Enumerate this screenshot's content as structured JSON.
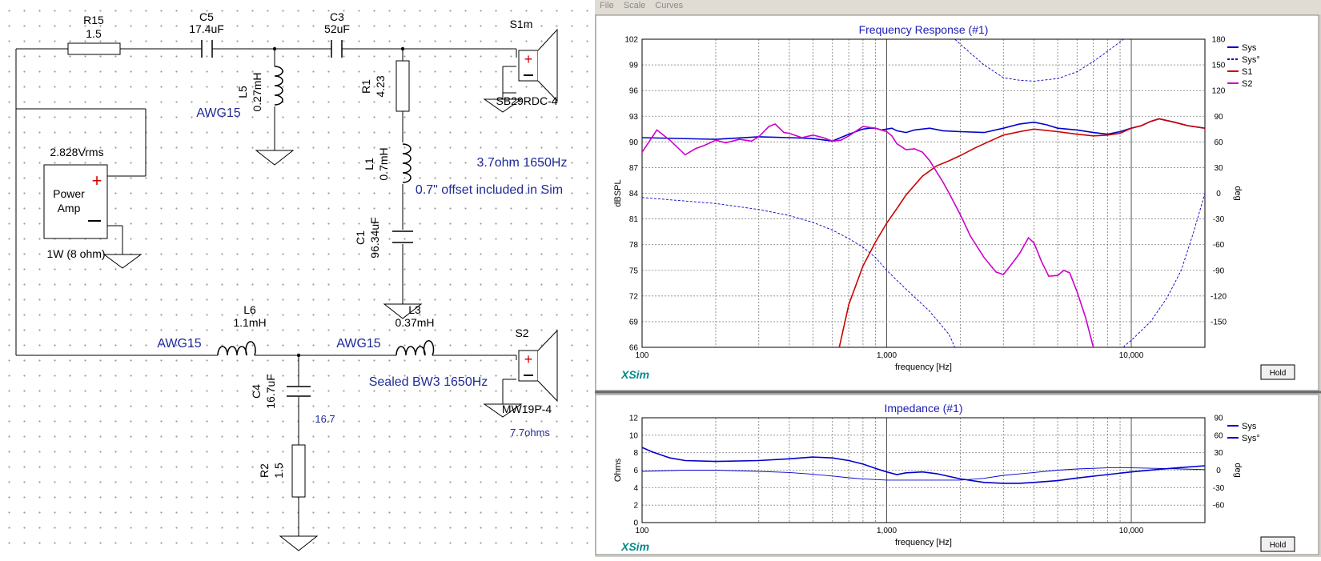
{
  "schematic": {
    "components": {
      "R15": {
        "name": "R15",
        "value": "1.5"
      },
      "C5": {
        "name": "C5",
        "value": "17.4uF"
      },
      "C3": {
        "name": "C3",
        "value": "52uF"
      },
      "L5": {
        "name": "L5",
        "value": "0.27mH",
        "wire": "AWG15"
      },
      "R1": {
        "name": "R1",
        "value": "4.23"
      },
      "L1": {
        "name": "L1",
        "value": "0.7mH"
      },
      "C1": {
        "name": "C1",
        "value": "96.34uF"
      },
      "L3": {
        "name": "L3",
        "value": "0.37mH",
        "wire": "AWG15"
      },
      "L6": {
        "name": "L6",
        "value": "1.1mH",
        "wire": "AWG15"
      },
      "C4": {
        "name": "C4",
        "value": "16.7uF",
        "esr": "16.7"
      },
      "R2": {
        "name": "R2",
        "value": "1.5"
      },
      "S1m": {
        "name": "S1m",
        "model": "SB29RDC-4"
      },
      "S2": {
        "name": "S2",
        "model": "MW19P-4",
        "impedance_note": "7.7ohms"
      }
    },
    "amp": {
      "voltage": "2.828Vrms",
      "label_line1": "Power",
      "label_line2": "Amp",
      "power": "1W (8 ohm)"
    },
    "notes": {
      "tweeter_xo": "3.7ohm  1650Hz",
      "offset": "0.7\" offset included in Sim",
      "woofer_xo": "Sealed BW3 1650Hz"
    },
    "colors": {
      "wire": "#000000",
      "note_text": "#1f2a9a",
      "label_text": "#000000",
      "polarity_plus": "#cc0000"
    }
  },
  "app": {
    "menu": [
      "File",
      "Scale",
      "Curves"
    ],
    "hold_label": "Hold",
    "brand": "XSim"
  },
  "chart_data": [
    {
      "type": "line",
      "title": "Frequency Response (#1)",
      "xlabel": "frequency [Hz]",
      "ylabel": "dBSPL",
      "y2label": "deg",
      "x_scale": "log",
      "xlim": [
        100,
        20000
      ],
      "ylim": [
        66,
        102
      ],
      "y2lim": [
        -180,
        180
      ],
      "x_ticks": [
        "100",
        "1,000",
        "10,000"
      ],
      "y_ticks": [
        "66",
        "69",
        "72",
        "75",
        "78",
        "81",
        "84",
        "87",
        "90",
        "93",
        "96",
        "99",
        "102"
      ],
      "y2_ticks": [
        "-150",
        "-120",
        "-90",
        "-60",
        "-30",
        "0",
        "30",
        "60",
        "90",
        "120",
        "150",
        "180"
      ],
      "grid": true,
      "legend": "top-right",
      "series": [
        {
          "name": "Sys",
          "color": "#0000cc",
          "axis": "left",
          "x": [
            100,
            200,
            300,
            400,
            500,
            600,
            700,
            800,
            850,
            900,
            950,
            1000,
            1050,
            1100,
            1200,
            1300,
            1500,
            1700,
            2000,
            2500,
            3000,
            3500,
            4000,
            4500,
            5000,
            6000,
            7000,
            8000,
            9000,
            10000,
            11000,
            12000,
            13000,
            15000,
            17000,
            20000
          ],
          "y": [
            90.5,
            90.3,
            90.6,
            90.5,
            90.4,
            90.1,
            90.9,
            91.5,
            91.6,
            91.6,
            91.4,
            91.5,
            91.6,
            91.3,
            91.1,
            91.4,
            91.6,
            91.3,
            91.2,
            91.1,
            91.6,
            92.1,
            92.3,
            92.0,
            91.6,
            91.4,
            91.1,
            90.9,
            91.2,
            91.6,
            91.9,
            92.4,
            92.7,
            92.3,
            91.9,
            91.6
          ]
        },
        {
          "name": "Sys°",
          "color": "#0000cc",
          "axis": "right",
          "dashed": true,
          "x": [
            100,
            200,
            300,
            400,
            500,
            600,
            700,
            800,
            900,
            1000,
            1200,
            1500,
            1800,
            1899,
            1900,
            2000,
            2500,
            3000,
            3500,
            4000,
            5000,
            6000,
            7000,
            8000,
            9300,
            9301,
            9400,
            10000,
            12000,
            14000,
            16000,
            18000,
            20000
          ],
          "y": [
            -5,
            -12,
            -19,
            -26,
            -34,
            -43,
            -53,
            -63,
            -75,
            -90,
            -112,
            -138,
            -165,
            -180,
            180,
            174,
            150,
            135,
            132,
            131,
            134,
            142,
            154,
            166,
            180,
            -180,
            -178,
            -172,
            -150,
            -122,
            -90,
            -45,
            0
          ]
        },
        {
          "name": "S1",
          "color": "#cc0000",
          "axis": "left",
          "x": [
            640,
            700,
            800,
            900,
            1000,
            1100,
            1200,
            1400,
            1600,
            1800,
            2000,
            2300,
            2600,
            3000,
            3500,
            4000,
            5000,
            6000,
            7000,
            8000,
            9000,
            10000,
            11000,
            12000,
            13000,
            15000,
            17000,
            20000
          ],
          "y": [
            66,
            71,
            75.5,
            78.3,
            80.5,
            82.2,
            83.8,
            86.0,
            87.2,
            87.8,
            88.4,
            89.3,
            90.0,
            90.8,
            91.2,
            91.5,
            91.2,
            90.9,
            90.7,
            90.8,
            91.0,
            91.6,
            91.9,
            92.4,
            92.7,
            92.3,
            91.9,
            91.6
          ]
        },
        {
          "name": "S2",
          "color": "#cc00cc",
          "axis": "left",
          "x": [
            100,
            115,
            130,
            150,
            165,
            180,
            200,
            220,
            250,
            280,
            300,
            330,
            350,
            380,
            400,
            450,
            500,
            550,
            600,
            650,
            700,
            800,
            900,
            1000,
            1050,
            1100,
            1200,
            1300,
            1400,
            1500,
            1600,
            1700,
            1800,
            2000,
            2200,
            2500,
            2800,
            3000,
            3200,
            3500,
            3800,
            4000,
            4300,
            4600,
            5000,
            5300,
            5600,
            6000,
            6500,
            7000
          ],
          "y": [
            88.8,
            91.4,
            90.2,
            88.5,
            89.2,
            89.6,
            90.2,
            89.9,
            90.3,
            90.1,
            90.6,
            91.8,
            92.1,
            91.1,
            91.0,
            90.5,
            90.8,
            90.5,
            90.1,
            90.2,
            90.7,
            91.8,
            91.6,
            91.2,
            90.7,
            89.8,
            89.1,
            89.2,
            88.8,
            87.8,
            86.5,
            85.3,
            84.0,
            81.5,
            79.0,
            76.5,
            74.8,
            74.5,
            75.5,
            77.0,
            78.8,
            78.2,
            76.0,
            74.3,
            74.4,
            75.0,
            74.7,
            72.5,
            69.5,
            66.0
          ]
        }
      ]
    },
    {
      "type": "line",
      "title": "Impedance (#1)",
      "xlabel": "frequency [Hz]",
      "ylabel": "Ohms",
      "y2label": "deg",
      "x_scale": "log",
      "xlim": [
        100,
        20000
      ],
      "ylim": [
        0,
        12
      ],
      "y2lim": [
        -90,
        90
      ],
      "x_ticks": [
        "100",
        "1,000",
        "10,000"
      ],
      "y_ticks": [
        "0",
        "2",
        "4",
        "6",
        "8",
        "10",
        "12"
      ],
      "y2_ticks": [
        "-60",
        "-30",
        "0",
        "30",
        "60",
        "90"
      ],
      "grid": true,
      "legend": "top-right",
      "series": [
        {
          "name": "Sys",
          "color": "#0000cc",
          "axis": "left",
          "x": [
            100,
            110,
            130,
            150,
            200,
            300,
            400,
            500,
            600,
            700,
            800,
            900,
            1000,
            1100,
            1200,
            1400,
            1600,
            2000,
            2500,
            3000,
            3500,
            4000,
            5000,
            6000,
            8000,
            10000,
            13000,
            16000,
            20000
          ],
          "y": [
            8.6,
            8.1,
            7.4,
            7.1,
            7.0,
            7.1,
            7.3,
            7.5,
            7.4,
            7.1,
            6.7,
            6.2,
            5.8,
            5.5,
            5.7,
            5.8,
            5.6,
            5.0,
            4.6,
            4.5,
            4.5,
            4.6,
            4.8,
            5.1,
            5.5,
            5.8,
            6.1,
            6.3,
            6.5
          ]
        },
        {
          "name": "Sys°",
          "color": "#0000cc",
          "axis": "right",
          "dashed": false,
          "x": [
            100,
            150,
            200,
            300,
            400,
            500,
            600,
            700,
            800,
            1000,
            1200,
            1500,
            2000,
            2500,
            3000,
            4000,
            5000,
            6000,
            8000,
            10000,
            13000,
            16000,
            20000
          ],
          "y": [
            -2,
            0,
            0,
            -2,
            -4,
            -7,
            -10,
            -13,
            -15,
            -17,
            -17,
            -17,
            -17,
            -14,
            -9,
            -4,
            0,
            2,
            4,
            4,
            3,
            2,
            1
          ]
        }
      ]
    }
  ]
}
